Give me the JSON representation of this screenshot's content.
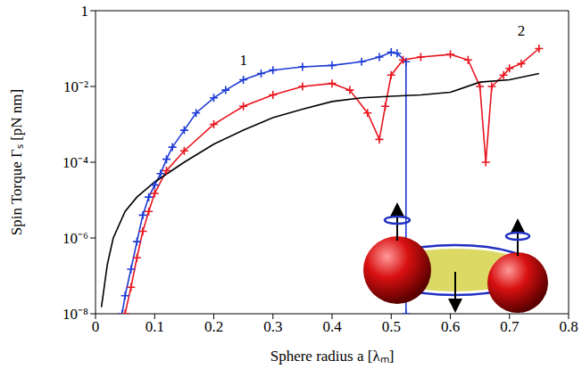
{
  "chart_data": {
    "type": "line",
    "x_label": "Sphere radius a [λₘ]",
    "y_label": "Spin  Torque Γₛ [pN nm]",
    "xlim": [
      0,
      0.8
    ],
    "ylim": [
      1e-08,
      1
    ],
    "xticks": [
      0,
      0.1,
      0.2,
      0.3,
      0.4,
      0.5,
      0.6,
      0.7,
      0.8
    ],
    "yticks": [
      {
        "value": 1e-08,
        "label": "10⁻⁸"
      },
      {
        "value": 1e-06,
        "label": "10⁻⁶"
      },
      {
        "value": 0.0001,
        "label": "10⁻⁴"
      },
      {
        "value": 0.01,
        "label": "10⁻²"
      },
      1
    ],
    "log": "y",
    "grid": false,
    "series": [
      {
        "color": "#1f3ad6",
        "marker": "plus",
        "x": [
          0.045,
          0.05,
          0.06,
          0.07,
          0.08,
          0.09,
          0.1,
          0.11,
          0.12,
          0.13,
          0.15,
          0.17,
          0.2,
          0.22,
          0.25,
          0.28,
          0.3,
          0.35,
          0.4,
          0.45,
          0.48,
          0.5,
          0.51,
          0.525,
          0.525
        ],
        "values": [
          1e-08,
          3e-08,
          1.5e-07,
          8e-07,
          4e-06,
          1.2e-05,
          2.5e-05,
          5e-05,
          0.00012,
          0.00025,
          0.0007,
          0.002,
          0.005,
          0.008,
          0.015,
          0.022,
          0.027,
          0.033,
          0.036,
          0.045,
          0.06,
          0.08,
          0.075,
          0.045,
          1e-08
        ]
      },
      {
        "color": "#e8141e",
        "marker": "plus",
        "x": [
          0.05,
          0.06,
          0.07,
          0.08,
          0.09,
          0.1,
          0.12,
          0.15,
          0.2,
          0.25,
          0.3,
          0.35,
          0.4,
          0.43,
          0.46,
          0.48,
          0.49,
          0.5,
          0.52,
          0.55,
          0.6,
          0.63,
          0.65,
          0.66,
          0.67,
          0.69,
          0.7,
          0.72,
          0.75
        ],
        "values": [
          1e-08,
          5e-08,
          3e-07,
          1.5e-06,
          5e-06,
          1.5e-05,
          6e-05,
          0.0002,
          0.001,
          0.003,
          0.006,
          0.01,
          0.012,
          0.008,
          0.002,
          0.0004,
          0.003,
          0.02,
          0.05,
          0.06,
          0.07,
          0.05,
          0.01,
          0.0001,
          0.01,
          0.02,
          0.03,
          0.04,
          0.1
        ]
      },
      {
        "color": "#000000",
        "marker": "none",
        "x": [
          0.01,
          0.02,
          0.03,
          0.05,
          0.07,
          0.1,
          0.15,
          0.2,
          0.25,
          0.3,
          0.35,
          0.4,
          0.45,
          0.5,
          0.55,
          0.6,
          0.65,
          0.7,
          0.75
        ],
        "values": [
          1.5e-08,
          2e-07,
          1e-06,
          5e-06,
          1.2e-05,
          3e-05,
          0.0001,
          0.0003,
          0.0007,
          0.0015,
          0.0025,
          0.004,
          0.005,
          0.0055,
          0.006,
          0.007,
          0.013,
          0.015,
          0.022
        ]
      }
    ],
    "annotations": [
      {
        "text": "1",
        "x": 0.25,
        "y": 0.05
      },
      {
        "text": "2",
        "x": 0.72,
        "y": 0.3
      }
    ]
  }
}
